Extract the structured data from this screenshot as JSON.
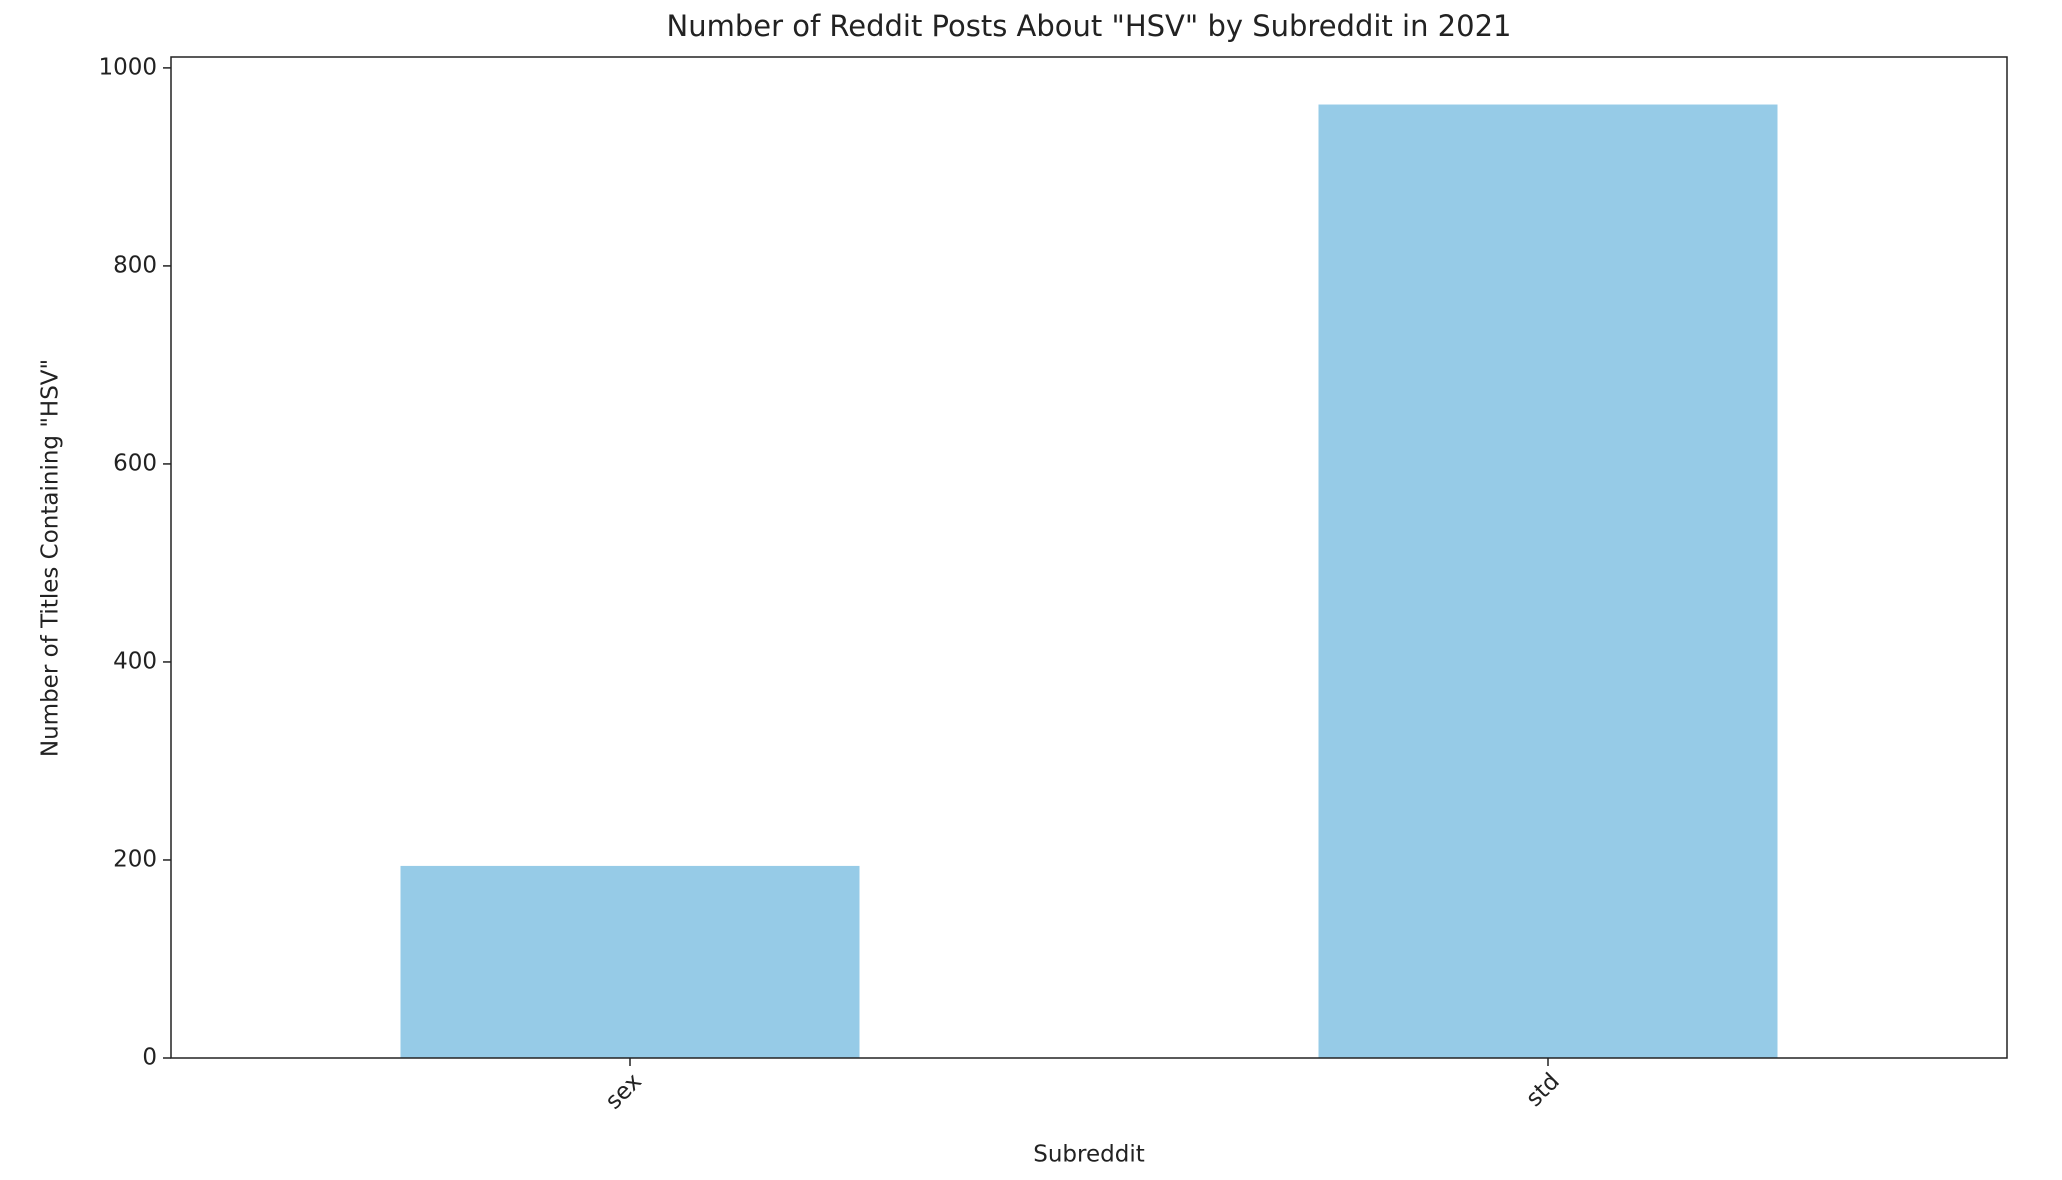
{
  "chart_data": {
    "type": "bar",
    "title": "Number of Reddit Posts About \"HSV\" by Subreddit in 2021",
    "x_label": "Subreddit",
    "y_label": "Number of Titles Containing \"HSV\"",
    "categories": [
      "sex",
      "std"
    ],
    "values": [
      194,
      963
    ],
    "color": "#96cbe7",
    "ylim": [
      0,
      1011
    ],
    "yticks": [
      0,
      200,
      400,
      600,
      800,
      1000
    ],
    "grid": false
  }
}
